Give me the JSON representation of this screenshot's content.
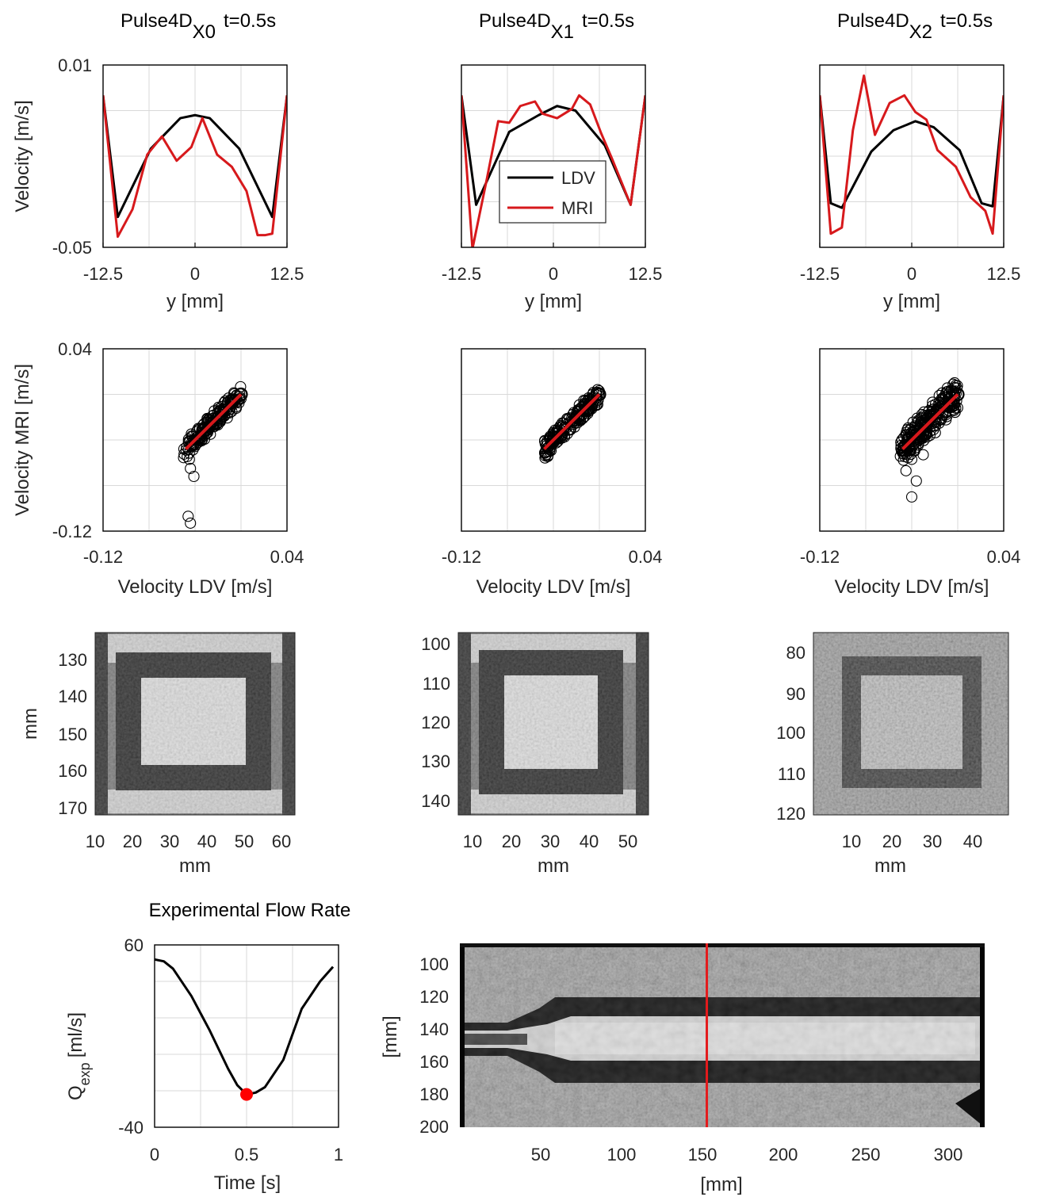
{
  "colors": {
    "ldv": "#000000",
    "mri": "#d7191c",
    "marker": "#ff0000"
  },
  "profiles": [
    {
      "title": "Pulse4D",
      "subscript": "X0",
      "time_label": "t=0.5s",
      "xlabel": "y [mm]",
      "ylabel": "Velocity [m/s]",
      "xticks": [
        "-12.5",
        "0",
        "12.5"
      ],
      "yticks": [
        "0.01",
        "-0.05"
      ]
    },
    {
      "title": "Pulse4D",
      "subscript": "X1",
      "time_label": "t=0.5s",
      "xlabel": "y [mm]",
      "ylabel": "",
      "xticks": [
        "-12.5",
        "0",
        "12.5"
      ],
      "yticks": [],
      "legend": [
        "LDV",
        "MRI"
      ]
    },
    {
      "title": "Pulse4D",
      "subscript": "X2",
      "time_label": "t=0.5s",
      "xlabel": "y [mm]",
      "ylabel": "",
      "xticks": [
        "-12.5",
        "0",
        "12.5"
      ],
      "yticks": []
    }
  ],
  "scatters": [
    {
      "xlabel": "Velocity LDV [m/s]",
      "ylabel": "Velocity MRI [m/s]",
      "xticks": [
        "-0.12",
        "0.04"
      ],
      "yticks": [
        "0.04",
        "-0.12"
      ]
    },
    {
      "xlabel": "Velocity LDV [m/s]",
      "ylabel": "",
      "xticks": [
        "-0.12",
        "0.04"
      ],
      "yticks": []
    },
    {
      "xlabel": "Velocity LDV [m/s]",
      "ylabel": "",
      "xticks": [
        "-0.12",
        "0.04"
      ],
      "yticks": []
    }
  ],
  "images": [
    {
      "xlabel": "mm",
      "ylabel": "mm",
      "xticks": [
        "10",
        "20",
        "30",
        "40",
        "50",
        "60"
      ],
      "yticks": [
        "130",
        "140",
        "150",
        "160",
        "170"
      ]
    },
    {
      "xlabel": "mm",
      "ylabel": "",
      "xticks": [
        "10",
        "20",
        "30",
        "40",
        "50"
      ],
      "yticks": [
        "100",
        "110",
        "120",
        "130",
        "140"
      ]
    },
    {
      "xlabel": "mm",
      "ylabel": "",
      "xticks": [
        "10",
        "20",
        "30",
        "40"
      ],
      "yticks": [
        "80",
        "90",
        "100",
        "110",
        "120"
      ]
    }
  ],
  "flow": {
    "title": "Experimental Flow Rate",
    "ylabel_main": "Q",
    "ylabel_sub": "exp",
    "ylabel_unit": "[ml/s]",
    "xlabel": "Time [s]",
    "xticks": [
      "0",
      "0.5",
      "1"
    ],
    "yticks": [
      "60",
      "-40"
    ]
  },
  "longimage": {
    "xlabel": "[mm]",
    "ylabel": "[mm]",
    "xticks": [
      "50",
      "100",
      "150",
      "200",
      "250",
      "300"
    ],
    "yticks": [
      "100",
      "120",
      "140",
      "160",
      "180",
      "200"
    ]
  },
  "chart_data": [
    {
      "type": "line",
      "title": "Pulse4D X0 t=0.5s",
      "xlabel": "y [mm]",
      "ylabel": "Velocity [m/s]",
      "xlim": [
        -12.5,
        12.5
      ],
      "ylim": [
        -0.05,
        0.01
      ],
      "grid": true,
      "series": [
        {
          "name": "LDV",
          "x": [
            -12.5,
            -10.5,
            -6,
            -2,
            0,
            2,
            6,
            10.5,
            12.5
          ],
          "values": [
            0,
            -0.04,
            -0.0175,
            -0.0075,
            -0.0065,
            -0.0075,
            -0.0175,
            -0.04,
            0
          ]
        },
        {
          "name": "MRI",
          "x": [
            -12.5,
            -10.5,
            -8.5,
            -6.5,
            -4.5,
            -2.5,
            -0.5,
            1,
            3,
            5,
            7,
            8.5,
            9.5,
            10.5,
            12.5
          ],
          "values": [
            0,
            -0.0465,
            -0.0375,
            -0.0195,
            -0.0135,
            -0.0215,
            -0.017,
            -0.0075,
            -0.0195,
            -0.0235,
            -0.0315,
            -0.046,
            -0.046,
            -0.0455,
            0
          ]
        }
      ]
    },
    {
      "type": "line",
      "title": "Pulse4D X1 t=0.5s",
      "xlabel": "y [mm]",
      "xlim": [
        -12.5,
        12.5
      ],
      "ylim": [
        -0.05,
        0.01
      ],
      "grid": true,
      "legend": "inside-lower-left",
      "series": [
        {
          "name": "LDV",
          "x": [
            -12.5,
            -10.5,
            -6,
            -2,
            0.5,
            3,
            7,
            10.5,
            12.5
          ],
          "values": [
            0,
            -0.036,
            -0.012,
            -0.0065,
            -0.0035,
            -0.005,
            -0.0165,
            -0.036,
            0
          ]
        },
        {
          "name": "MRI",
          "x": [
            -12.5,
            -11,
            -9,
            -7.5,
            -6,
            -4.5,
            -2.5,
            -1.5,
            0.5,
            2.5,
            3.5,
            5,
            6.5,
            8,
            10.5,
            12.5
          ],
          "values": [
            0,
            -0.0505,
            -0.027,
            -0.0085,
            -0.009,
            -0.0035,
            -0.002,
            -0.006,
            -0.0075,
            -0.0045,
            0,
            -0.003,
            -0.0125,
            -0.021,
            -0.036,
            0
          ]
        }
      ]
    },
    {
      "type": "line",
      "title": "Pulse4D X2 t=0.5s",
      "xlabel": "y [mm]",
      "xlim": [
        -12.5,
        12.5
      ],
      "ylim": [
        -0.05,
        0.01
      ],
      "grid": true,
      "series": [
        {
          "name": "LDV",
          "x": [
            -12.5,
            -11,
            -9.5,
            -5.5,
            -2.5,
            0.5,
            3,
            6.5,
            9.5,
            11,
            12.5
          ],
          "values": [
            0,
            -0.0355,
            -0.037,
            -0.0185,
            -0.0115,
            -0.0085,
            -0.0105,
            -0.018,
            -0.0355,
            -0.0365,
            0
          ]
        },
        {
          "name": "MRI",
          "x": [
            -12.5,
            -11,
            -9.5,
            -8,
            -6.5,
            -5,
            -3,
            -1,
            0.5,
            2,
            3.5,
            6,
            8,
            10,
            11,
            12.5
          ],
          "values": [
            0,
            -0.0455,
            -0.0435,
            -0.0115,
            0.0065,
            -0.013,
            -0.0025,
            0,
            -0.0055,
            -0.008,
            -0.018,
            -0.0235,
            -0.0335,
            -0.038,
            -0.0455,
            0
          ]
        }
      ]
    },
    {
      "type": "scatter",
      "xlabel": "Velocity LDV [m/s]",
      "ylabel": "Velocity MRI [m/s]",
      "xlim": [
        -0.12,
        0.04
      ],
      "ylim": [
        -0.12,
        0.04
      ],
      "grid": true,
      "approx_range": {
        "x": [
          -0.05,
          0.0
        ],
        "y": [
          -0.05,
          0.0
        ]
      },
      "outliers": [
        [
          -0.045,
          -0.057
        ],
        [
          -0.044,
          -0.065
        ],
        [
          -0.041,
          -0.072
        ],
        [
          -0.044,
          -0.113
        ],
        [
          -0.046,
          -0.107
        ]
      ],
      "fit_line": {
        "x": [
          -0.048,
          0.0
        ],
        "y": [
          -0.048,
          0.0
        ]
      }
    },
    {
      "type": "scatter",
      "xlabel": "Velocity LDV [m/s]",
      "xlim": [
        -0.12,
        0.04
      ],
      "ylim": [
        -0.12,
        0.04
      ],
      "grid": true,
      "approx_range": {
        "x": [
          -0.048,
          0.0
        ],
        "y": [
          -0.052,
          0.0
        ]
      },
      "fit_line": {
        "x": [
          -0.048,
          0.0
        ],
        "y": [
          -0.048,
          0.0
        ]
      }
    },
    {
      "type": "scatter",
      "xlabel": "Velocity LDV [m/s]",
      "xlim": [
        -0.12,
        0.04
      ],
      "ylim": [
        -0.12,
        0.04
      ],
      "grid": true,
      "approx_range": {
        "x": [
          -0.05,
          0.0
        ],
        "y": [
          -0.06,
          0.01
        ]
      },
      "outliers": [
        [
          -0.045,
          -0.067
        ],
        [
          -0.04,
          -0.057
        ],
        [
          -0.03,
          -0.053
        ],
        [
          -0.036,
          -0.076
        ],
        [
          -0.04,
          -0.09
        ]
      ],
      "fit_line": {
        "x": [
          -0.048,
          0.0
        ],
        "y": [
          -0.048,
          0.0
        ]
      }
    },
    {
      "type": "heatmap",
      "xlabel": "mm",
      "ylabel": "mm",
      "colormap": "gray",
      "xlim": [
        5,
        63
      ],
      "ylim": [
        172,
        122
      ],
      "description_values": "square channel cross-section"
    },
    {
      "type": "heatmap",
      "xlabel": "mm",
      "ylabel": "mm",
      "colormap": "gray",
      "xlim": [
        7,
        54
      ],
      "ylim": [
        98,
        142
      ]
    },
    {
      "type": "heatmap",
      "xlabel": "mm",
      "ylabel": "mm",
      "colormap": "gray",
      "xlim": [
        2,
        48
      ],
      "ylim": [
        77,
        122
      ]
    },
    {
      "type": "line",
      "title": "Experimental Flow Rate",
      "xlabel": "Time [s]",
      "ylabel": "Q exp [ml/s]",
      "xlim": [
        0,
        1
      ],
      "ylim": [
        -40,
        60
      ],
      "grid": true,
      "series": [
        {
          "name": "",
          "x": [
            0,
            0.05,
            0.1,
            0.2,
            0.3,
            0.4,
            0.45,
            0.5,
            0.55,
            0.6,
            0.7,
            0.8,
            0.9,
            0.97
          ],
          "values": [
            52,
            51,
            47,
            32,
            13,
            -8,
            -17,
            -22,
            -21,
            -18,
            -3,
            25,
            40,
            48
          ]
        }
      ],
      "marker": {
        "x": 0.5,
        "y": -22
      }
    },
    {
      "type": "heatmap",
      "xlabel": "[mm]",
      "ylabel": "[mm]",
      "colormap": "gray",
      "xlim": [
        0,
        323
      ],
      "ylim": [
        90,
        200
      ],
      "marker_line_x": 152
    }
  ]
}
